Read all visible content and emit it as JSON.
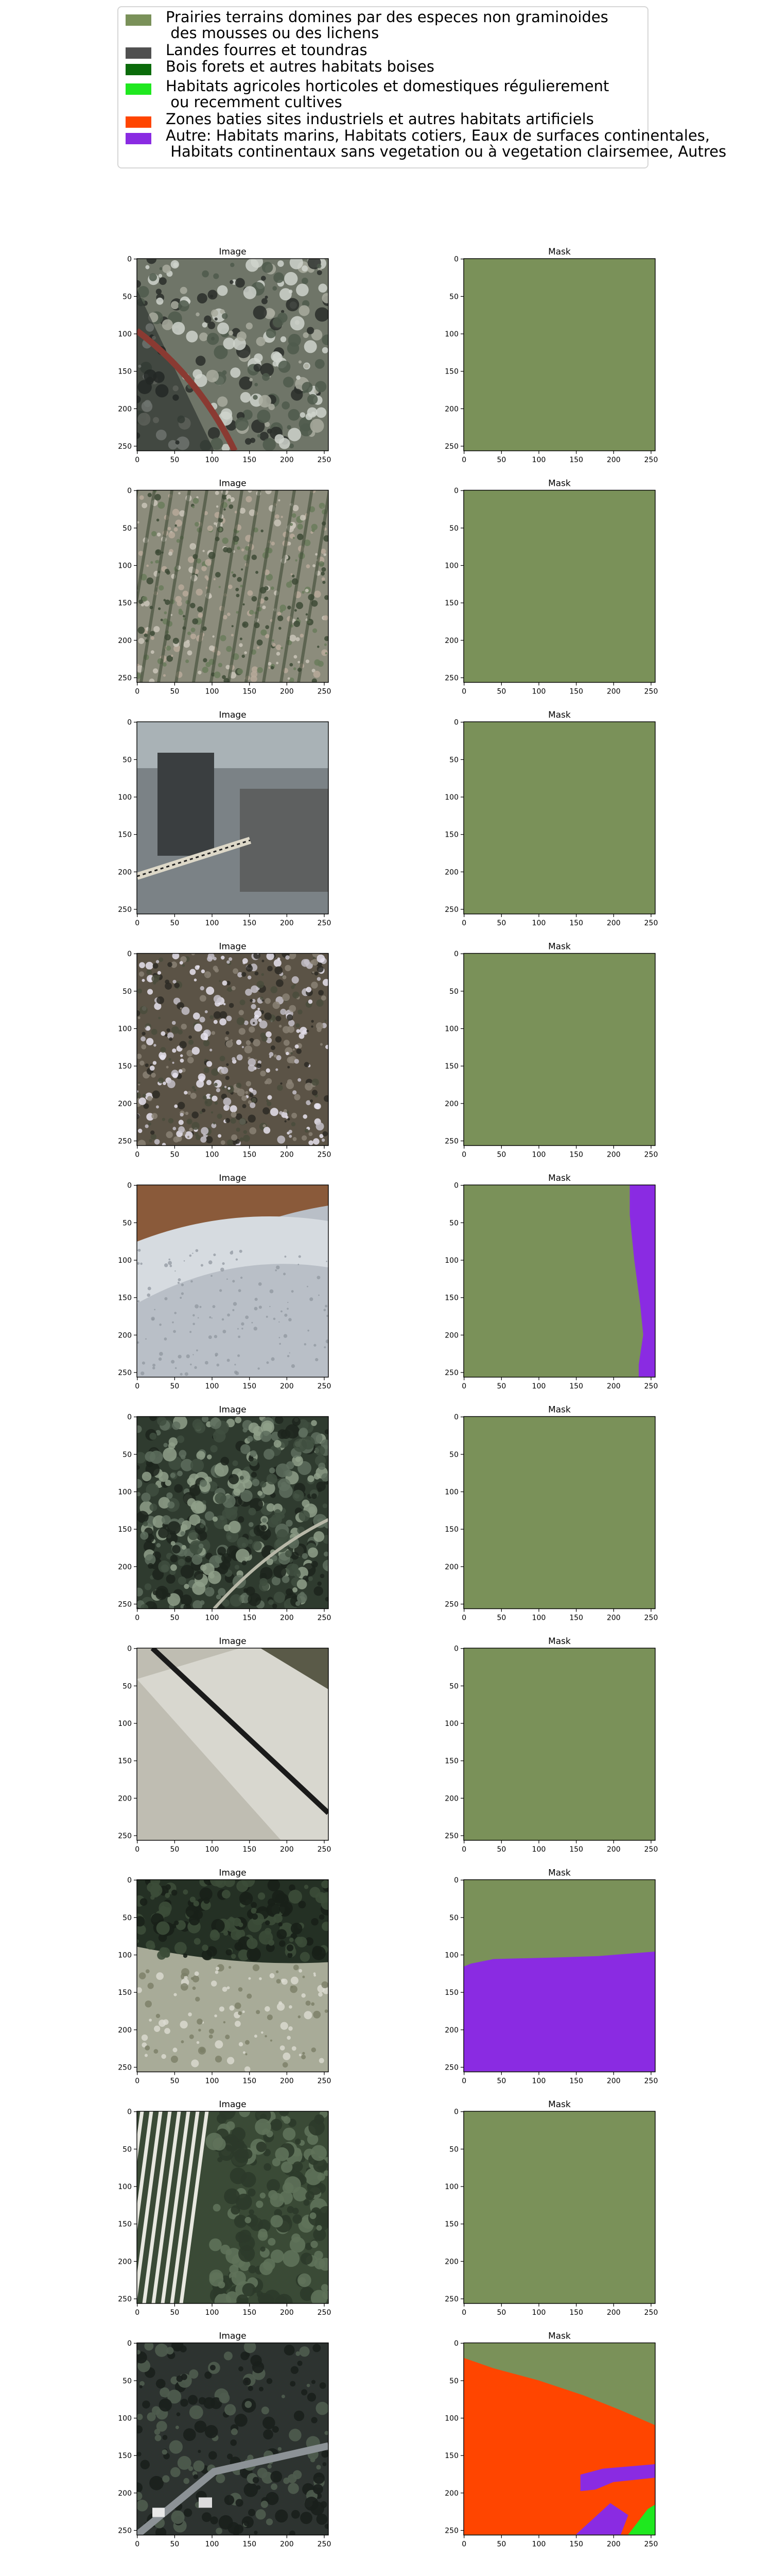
{
  "legend": [
    {
      "label": "Prairies terrains domines par des especes non graminoides\n des mousses ou des lichens",
      "color": "#7a9159"
    },
    {
      "label": "Landes fourres et toundras",
      "color": "#505050"
    },
    {
      "label": "Bois forets et autres habitats boises",
      "color": "#0a6b0a"
    },
    {
      "label": "Habitats agricoles horticoles et domestiques régulierement\n ou recemment cultives",
      "color": "#1fe81f"
    },
    {
      "label": "Zones baties sites industriels et autres habitats artificiels",
      "color": "#ff4500"
    },
    {
      "label": "Autre: Habitats marins, Habitats cotiers, Eaux de surfaces continentales,\n Habitats continentaux sans vegetation ou à vegetation clairsemee, Autres",
      "color": "#8a2be2"
    }
  ],
  "panel_titles": {
    "image": "Image",
    "mask": "Mask"
  },
  "tick_labels": [
    "0",
    "50",
    "100",
    "150",
    "200",
    "250"
  ],
  "rows": [
    {
      "image_scene": "field with dark trees and a red path",
      "mask_classes": [
        "Prairies"
      ]
    },
    {
      "image_scene": "rows of vegetation on bare soil",
      "mask_classes": [
        "Prairies"
      ]
    },
    {
      "image_scene": "concrete structure with rail tracks",
      "mask_classes": [
        "Prairies"
      ]
    },
    {
      "image_scene": "dense mixed vegetation",
      "mask_classes": [
        "Prairies"
      ]
    },
    {
      "image_scene": "riverbed with gravel",
      "mask_classes": [
        "Prairies",
        "Autre"
      ]
    },
    {
      "image_scene": "dense forest canopy",
      "mask_classes": [
        "Prairies"
      ]
    },
    {
      "image_scene": "road with shadows",
      "mask_classes": [
        "Prairies"
      ]
    },
    {
      "image_scene": "forest above a clearing",
      "mask_classes": [
        "Prairies",
        "Autre"
      ]
    },
    {
      "image_scene": "vineyard rows beside trees",
      "mask_classes": [
        "Prairies"
      ]
    },
    {
      "image_scene": "urban area with vehicles",
      "mask_classes": [
        "Prairies",
        "Zones baties",
        "Autre",
        "Habitats agricoles"
      ]
    }
  ]
}
